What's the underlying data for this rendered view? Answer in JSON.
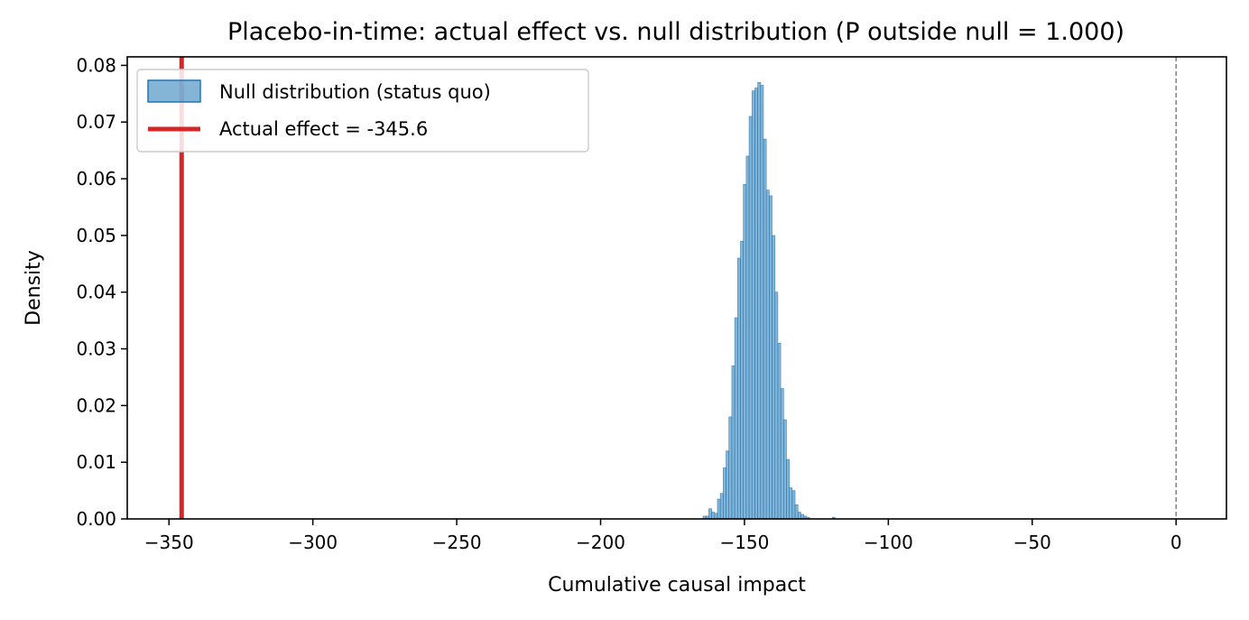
{
  "chart_data": {
    "type": "histogram",
    "title": "Placebo-in-time: actual effect vs. null distribution (P outside null = 1.000)",
    "xlabel": "Cumulative causal impact",
    "ylabel": "Density",
    "xlim": [
      -364.5,
      17.5
    ],
    "ylim": [
      0,
      0.0815
    ],
    "x_ticks": [
      -350,
      -300,
      -250,
      -200,
      -150,
      -100,
      -50,
      0
    ],
    "x_tick_labels": [
      "−350",
      "−300",
      "−250",
      "−200",
      "−150",
      "−100",
      "−50",
      "0"
    ],
    "y_ticks": [
      0.0,
      0.01,
      0.02,
      0.03,
      0.04,
      0.05,
      0.06,
      0.07,
      0.08
    ],
    "y_tick_labels": [
      "0.00",
      "0.01",
      "0.02",
      "0.03",
      "0.04",
      "0.05",
      "0.06",
      "0.07",
      "0.08"
    ],
    "grid": false,
    "legend_position": "top-left",
    "series": [
      {
        "name": "Null distribution (status quo)",
        "kind": "histogram",
        "color": "#1f77b4",
        "bins": [
          {
            "x0": -164.4,
            "x1": -163.4,
            "density": 0.0005
          },
          {
            "x0": -163.4,
            "x1": -162.4,
            "density": 0.0005
          },
          {
            "x0": -162.4,
            "x1": -161.4,
            "density": 0.0018
          },
          {
            "x0": -161.4,
            "x1": -160.4,
            "density": 0.0012
          },
          {
            "x0": -160.4,
            "x1": -159.4,
            "density": 0.001
          },
          {
            "x0": -159.4,
            "x1": -158.4,
            "density": 0.0035
          },
          {
            "x0": -158.4,
            "x1": -157.4,
            "density": 0.0045
          },
          {
            "x0": -157.4,
            "x1": -156.4,
            "density": 0.009
          },
          {
            "x0": -156.4,
            "x1": -155.4,
            "density": 0.012
          },
          {
            "x0": -155.4,
            "x1": -154.4,
            "density": 0.018
          },
          {
            "x0": -154.4,
            "x1": -153.4,
            "density": 0.027
          },
          {
            "x0": -153.4,
            "x1": -152.4,
            "density": 0.0355
          },
          {
            "x0": -152.4,
            "x1": -151.4,
            "density": 0.046
          },
          {
            "x0": -151.4,
            "x1": -150.4,
            "density": 0.049
          },
          {
            "x0": -150.4,
            "x1": -149.4,
            "density": 0.059
          },
          {
            "x0": -149.4,
            "x1": -148.4,
            "density": 0.064
          },
          {
            "x0": -148.4,
            "x1": -147.4,
            "density": 0.071
          },
          {
            "x0": -147.4,
            "x1": -146.4,
            "density": 0.0755
          },
          {
            "x0": -146.4,
            "x1": -145.4,
            "density": 0.076
          },
          {
            "x0": -145.4,
            "x1": -144.4,
            "density": 0.077
          },
          {
            "x0": -144.4,
            "x1": -143.4,
            "density": 0.0765
          },
          {
            "x0": -143.4,
            "x1": -142.4,
            "density": 0.067
          },
          {
            "x0": -142.4,
            "x1": -141.4,
            "density": 0.058
          },
          {
            "x0": -141.4,
            "x1": -140.4,
            "density": 0.057
          },
          {
            "x0": -140.4,
            "x1": -139.4,
            "density": 0.05
          },
          {
            "x0": -139.4,
            "x1": -138.4,
            "density": 0.04
          },
          {
            "x0": -138.4,
            "x1": -137.4,
            "density": 0.031
          },
          {
            "x0": -137.4,
            "x1": -136.4,
            "density": 0.023
          },
          {
            "x0": -136.4,
            "x1": -135.4,
            "density": 0.0175
          },
          {
            "x0": -135.4,
            "x1": -134.4,
            "density": 0.0105
          },
          {
            "x0": -134.4,
            "x1": -133.4,
            "density": 0.0055
          },
          {
            "x0": -133.4,
            "x1": -132.4,
            "density": 0.005
          },
          {
            "x0": -132.4,
            "x1": -131.4,
            "density": 0.0025
          },
          {
            "x0": -131.4,
            "x1": -130.4,
            "density": 0.0012
          },
          {
            "x0": -130.4,
            "x1": -129.4,
            "density": 0.0008
          },
          {
            "x0": -129.4,
            "x1": -128.4,
            "density": 0.0005
          },
          {
            "x0": -128.4,
            "x1": -127.4,
            "density": 0.0003
          },
          {
            "x0": -119.5,
            "x1": -118.5,
            "density": 0.0003
          }
        ]
      },
      {
        "name": "Actual effect = -345.6",
        "kind": "vertical-line",
        "x": -345.6,
        "color": "#d62728"
      }
    ],
    "reference_line": {
      "x": 0,
      "style": "dashed",
      "color": "#808080"
    }
  }
}
